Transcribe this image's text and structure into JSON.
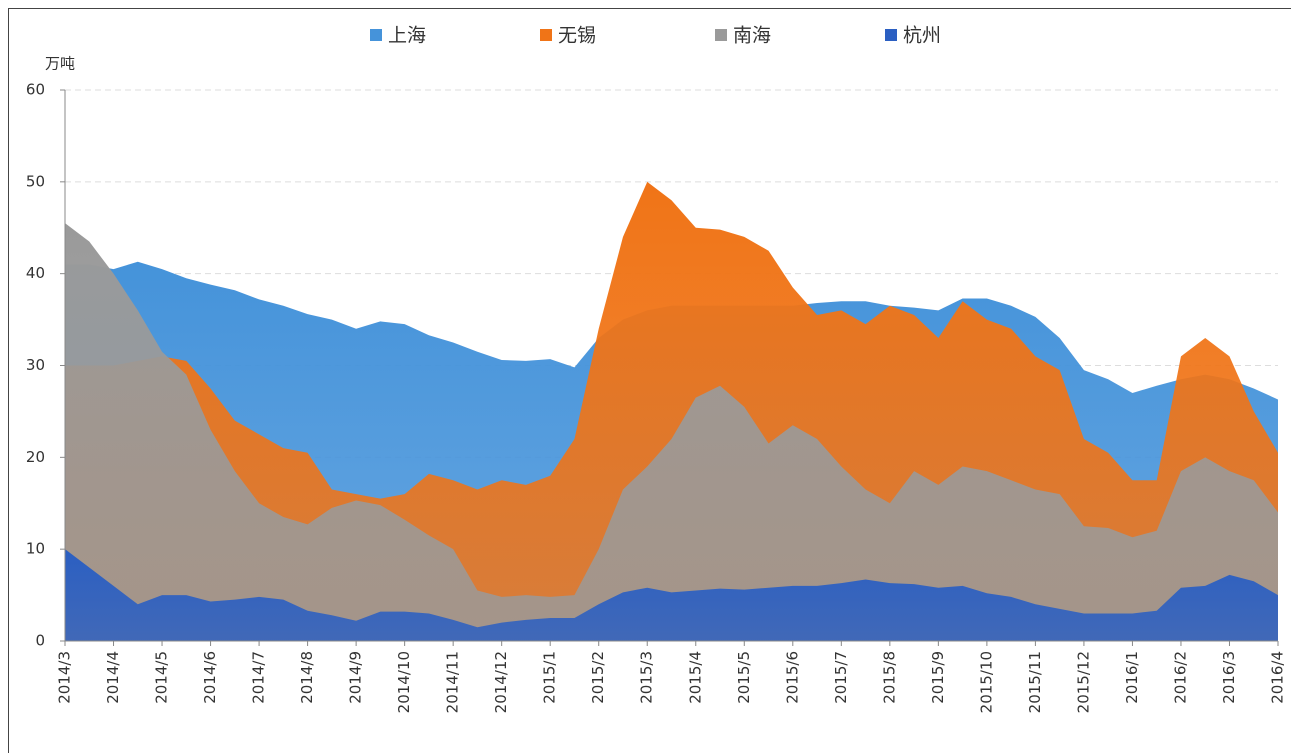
{
  "chart_data": {
    "type": "area",
    "y_label": "万吨",
    "categories": [
      "2014/3",
      null,
      "2014/4",
      null,
      "2014/5",
      null,
      "2014/6",
      null,
      "2014/7",
      null,
      "2014/8",
      null,
      "2014/9",
      null,
      "2014/10",
      null,
      "2014/11",
      null,
      "2014/12",
      null,
      "2015/1",
      null,
      "2015/2",
      null,
      "2015/3",
      null,
      "2015/4",
      null,
      "2015/5",
      null,
      "2015/6",
      null,
      "2015/7",
      null,
      "2015/8",
      null,
      "2015/9",
      null,
      "2015/10",
      null,
      "2015/11",
      null,
      "2015/12",
      null,
      "2016/1",
      null,
      "2016/2",
      null,
      "2016/3",
      null,
      "2016/4"
    ],
    "series": [
      {
        "name": "上海",
        "color": "#4593da",
        "values": [
          41,
          41,
          40.5,
          41.3,
          40.5,
          39.5,
          38.8,
          38.2,
          37.2,
          36.5,
          35.6,
          35,
          34,
          34.8,
          34.5,
          33.3,
          32.5,
          31.5,
          30.6,
          30.5,
          30.7,
          29.8,
          33,
          35,
          36,
          36.5,
          36.5,
          36.5,
          36.5,
          36.5,
          36.5,
          36.8,
          37,
          37,
          36.5,
          36.3,
          36,
          37.3,
          37.3,
          36.5,
          35.3,
          33,
          29.5,
          28.5,
          27,
          27.8,
          28.5,
          29,
          28.5,
          27.5,
          26.3
        ]
      },
      {
        "name": "无锡",
        "color": "#f07417",
        "values": [
          30,
          30,
          30,
          30.5,
          31,
          30.5,
          27.5,
          24,
          22.5,
          21,
          20.5,
          16.5,
          16,
          15.5,
          16,
          18.2,
          17.5,
          16.5,
          17.5,
          17,
          18,
          22,
          34,
          44,
          50,
          48,
          45,
          44.8,
          44,
          42.5,
          38.5,
          35.5,
          36,
          34.5,
          36.5,
          35.5,
          33,
          37,
          35,
          34,
          31,
          29.5,
          22,
          20.5,
          17.5,
          17.5,
          31,
          33,
          31,
          25,
          20.5
        ]
      },
      {
        "name": "南海",
        "color": "#9a9a9a",
        "values": [
          45.5,
          43.5,
          40,
          36,
          31.5,
          29,
          23,
          18.5,
          15,
          13.5,
          12.7,
          14.5,
          15.3,
          14.8,
          13.2,
          11.5,
          10,
          5.5,
          4.8,
          5,
          4.8,
          5,
          10,
          16.5,
          19,
          22,
          26.5,
          27.8,
          25.5,
          21.5,
          23.5,
          22,
          19,
          16.5,
          15,
          18.5,
          17,
          19,
          18.5,
          17.5,
          16.5,
          16,
          12.5,
          12.3,
          11.3,
          12,
          18.5,
          20,
          18.5,
          17.5,
          14
        ]
      },
      {
        "name": "杭州",
        "color": "#2b5fc2",
        "values": [
          10,
          8,
          6,
          4,
          5,
          5,
          4.3,
          4.5,
          4.8,
          4.5,
          3.3,
          2.8,
          2.2,
          3.2,
          3.2,
          3,
          2.3,
          1.5,
          2,
          2.3,
          2.5,
          2.5,
          4,
          5.3,
          5.8,
          5.3,
          5.5,
          5.7,
          5.6,
          5.8,
          6,
          6,
          6.3,
          6.7,
          6.3,
          6.2,
          5.8,
          6,
          5.2,
          4.8,
          4,
          3.5,
          3,
          3,
          3,
          3.3,
          5.8,
          6,
          7.2,
          6.5,
          5
        ]
      }
    ],
    "ylim": [
      0,
      60
    ],
    "yticks": [
      0,
      10,
      20,
      30,
      40,
      50,
      60
    ],
    "grid": true
  }
}
